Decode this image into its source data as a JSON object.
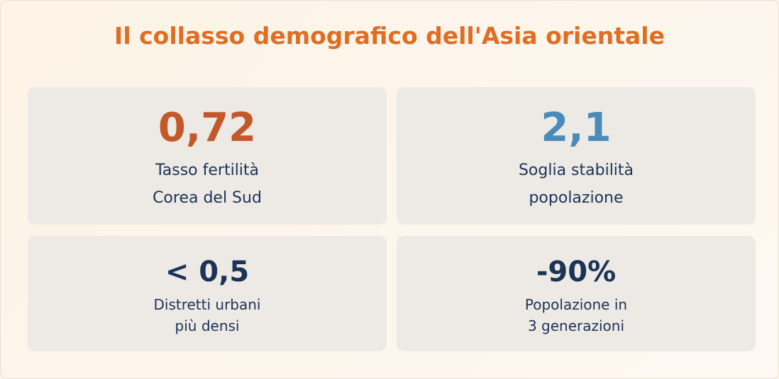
{
  "title": "Il collasso demografico dell'Asia orientale",
  "cards": [
    {
      "value": "0,72",
      "lines": [
        "Tasso fertilità",
        "Corea del Sud"
      ]
    },
    {
      "value": "2,1",
      "lines": [
        "Soglia stabilità",
        "popolazione"
      ]
    },
    {
      "value": "< 0,5",
      "lines": [
        "Distretti urbani",
        "più densi"
      ]
    },
    {
      "value": "-90%",
      "lines": [
        "Popolazione in",
        "3 generazioni"
      ]
    }
  ]
}
